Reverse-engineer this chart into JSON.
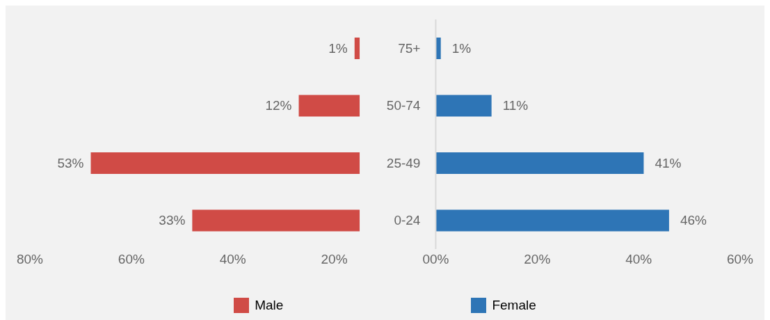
{
  "chart_data": {
    "type": "bar",
    "orientation": "horizontal",
    "categories": [
      "75+",
      "50-74",
      "25-49",
      "0-24"
    ],
    "series": [
      {
        "name": "Male",
        "color": "#d04b46",
        "values": [
          -1,
          -12,
          -53,
          -33
        ],
        "base": [
          -15,
          -15,
          -15,
          -15
        ],
        "value_labels": [
          "1%",
          "12%",
          "53%",
          "33%"
        ]
      },
      {
        "name": "Female",
        "color": "#2e75b6",
        "values": [
          1,
          11,
          41,
          46
        ],
        "value_labels": [
          "1%",
          "11%",
          "41%",
          "46%"
        ]
      }
    ],
    "xlim": [
      -80,
      60
    ],
    "xticks": [
      {
        "value": -80,
        "label": "80%"
      },
      {
        "value": -60,
        "label": "60%"
      },
      {
        "value": -40,
        "label": "40%"
      },
      {
        "value": -20,
        "label": "20%"
      },
      {
        "value": 0,
        "label": "00%"
      },
      {
        "value": 20,
        "label": "20%"
      },
      {
        "value": 40,
        "label": "40%"
      },
      {
        "value": 60,
        "label": "60%"
      }
    ],
    "grid": false,
    "legend": "bottom"
  }
}
